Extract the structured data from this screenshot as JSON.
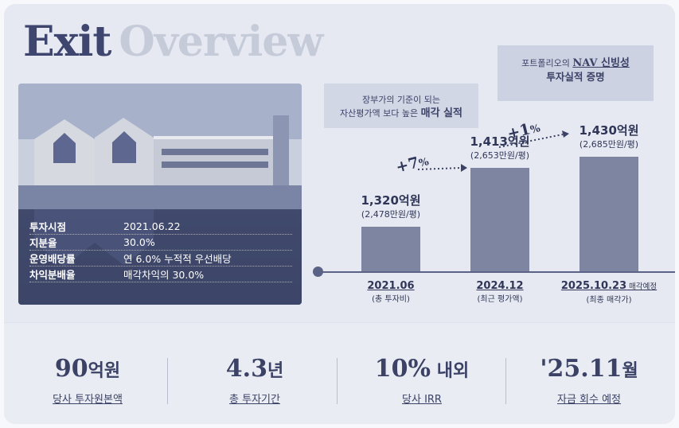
{
  "title": {
    "word1": "Exit",
    "word2": "Overview"
  },
  "investment_info": [
    {
      "key": "투자시점",
      "value": "2021.06.22"
    },
    {
      "key": "지분율",
      "value": "30.0%"
    },
    {
      "key": "운영배당률",
      "value": "연 6.0% 누적적 우선배당"
    },
    {
      "key": "차익분배율",
      "value": "매각차익의 30.0%"
    }
  ],
  "callouts": {
    "left": {
      "line1": "장부가의 기준이 되는",
      "line2_a": "자산평가액",
      "line2_b": " 보다 높은 ",
      "line2_c": "매각 실적"
    },
    "right": {
      "line1_a": "포트폴리오의 ",
      "line1_b": "NAV 신빙성",
      "line2": "투자실적 증명"
    }
  },
  "growth_labels": [
    {
      "value": "+7",
      "unit": "%"
    },
    {
      "value": "+1",
      "unit": "%"
    }
  ],
  "chart_data": {
    "type": "bar",
    "categories": [
      "2021.06",
      "2024.12",
      "2025.10.23"
    ],
    "category_notes": [
      "",
      "",
      "매각예정"
    ],
    "category_subs": [
      "(총 투자비)",
      "(최근 평가액)",
      "(최종 매각가)"
    ],
    "values": [
      1320,
      1413,
      1430
    ],
    "value_labels": [
      "1,320억원",
      "1,413억원",
      "1,430억원"
    ],
    "sub_labels": [
      "(2,478만원/평)",
      "(2,653만원/평)",
      "(2,685만원/평)"
    ],
    "unit": "억원",
    "colors": {
      "bar": "#7d85a1",
      "axis": "#5a6285"
    }
  },
  "stats": [
    {
      "num": "90",
      "unit": "억원",
      "label": "당사 투자원본액"
    },
    {
      "num": "4.3",
      "unit": "년",
      "label": "총 투자기간"
    },
    {
      "num": "10%",
      "unit": " 내외",
      "label": "당사 IRR"
    },
    {
      "num": "'25.11",
      "unit": "월",
      "label": "자금 회수 예정"
    }
  ],
  "colors": {
    "primary": "#3e4670",
    "muted": "#c6cbd9",
    "panel": "#e6e9f1"
  }
}
